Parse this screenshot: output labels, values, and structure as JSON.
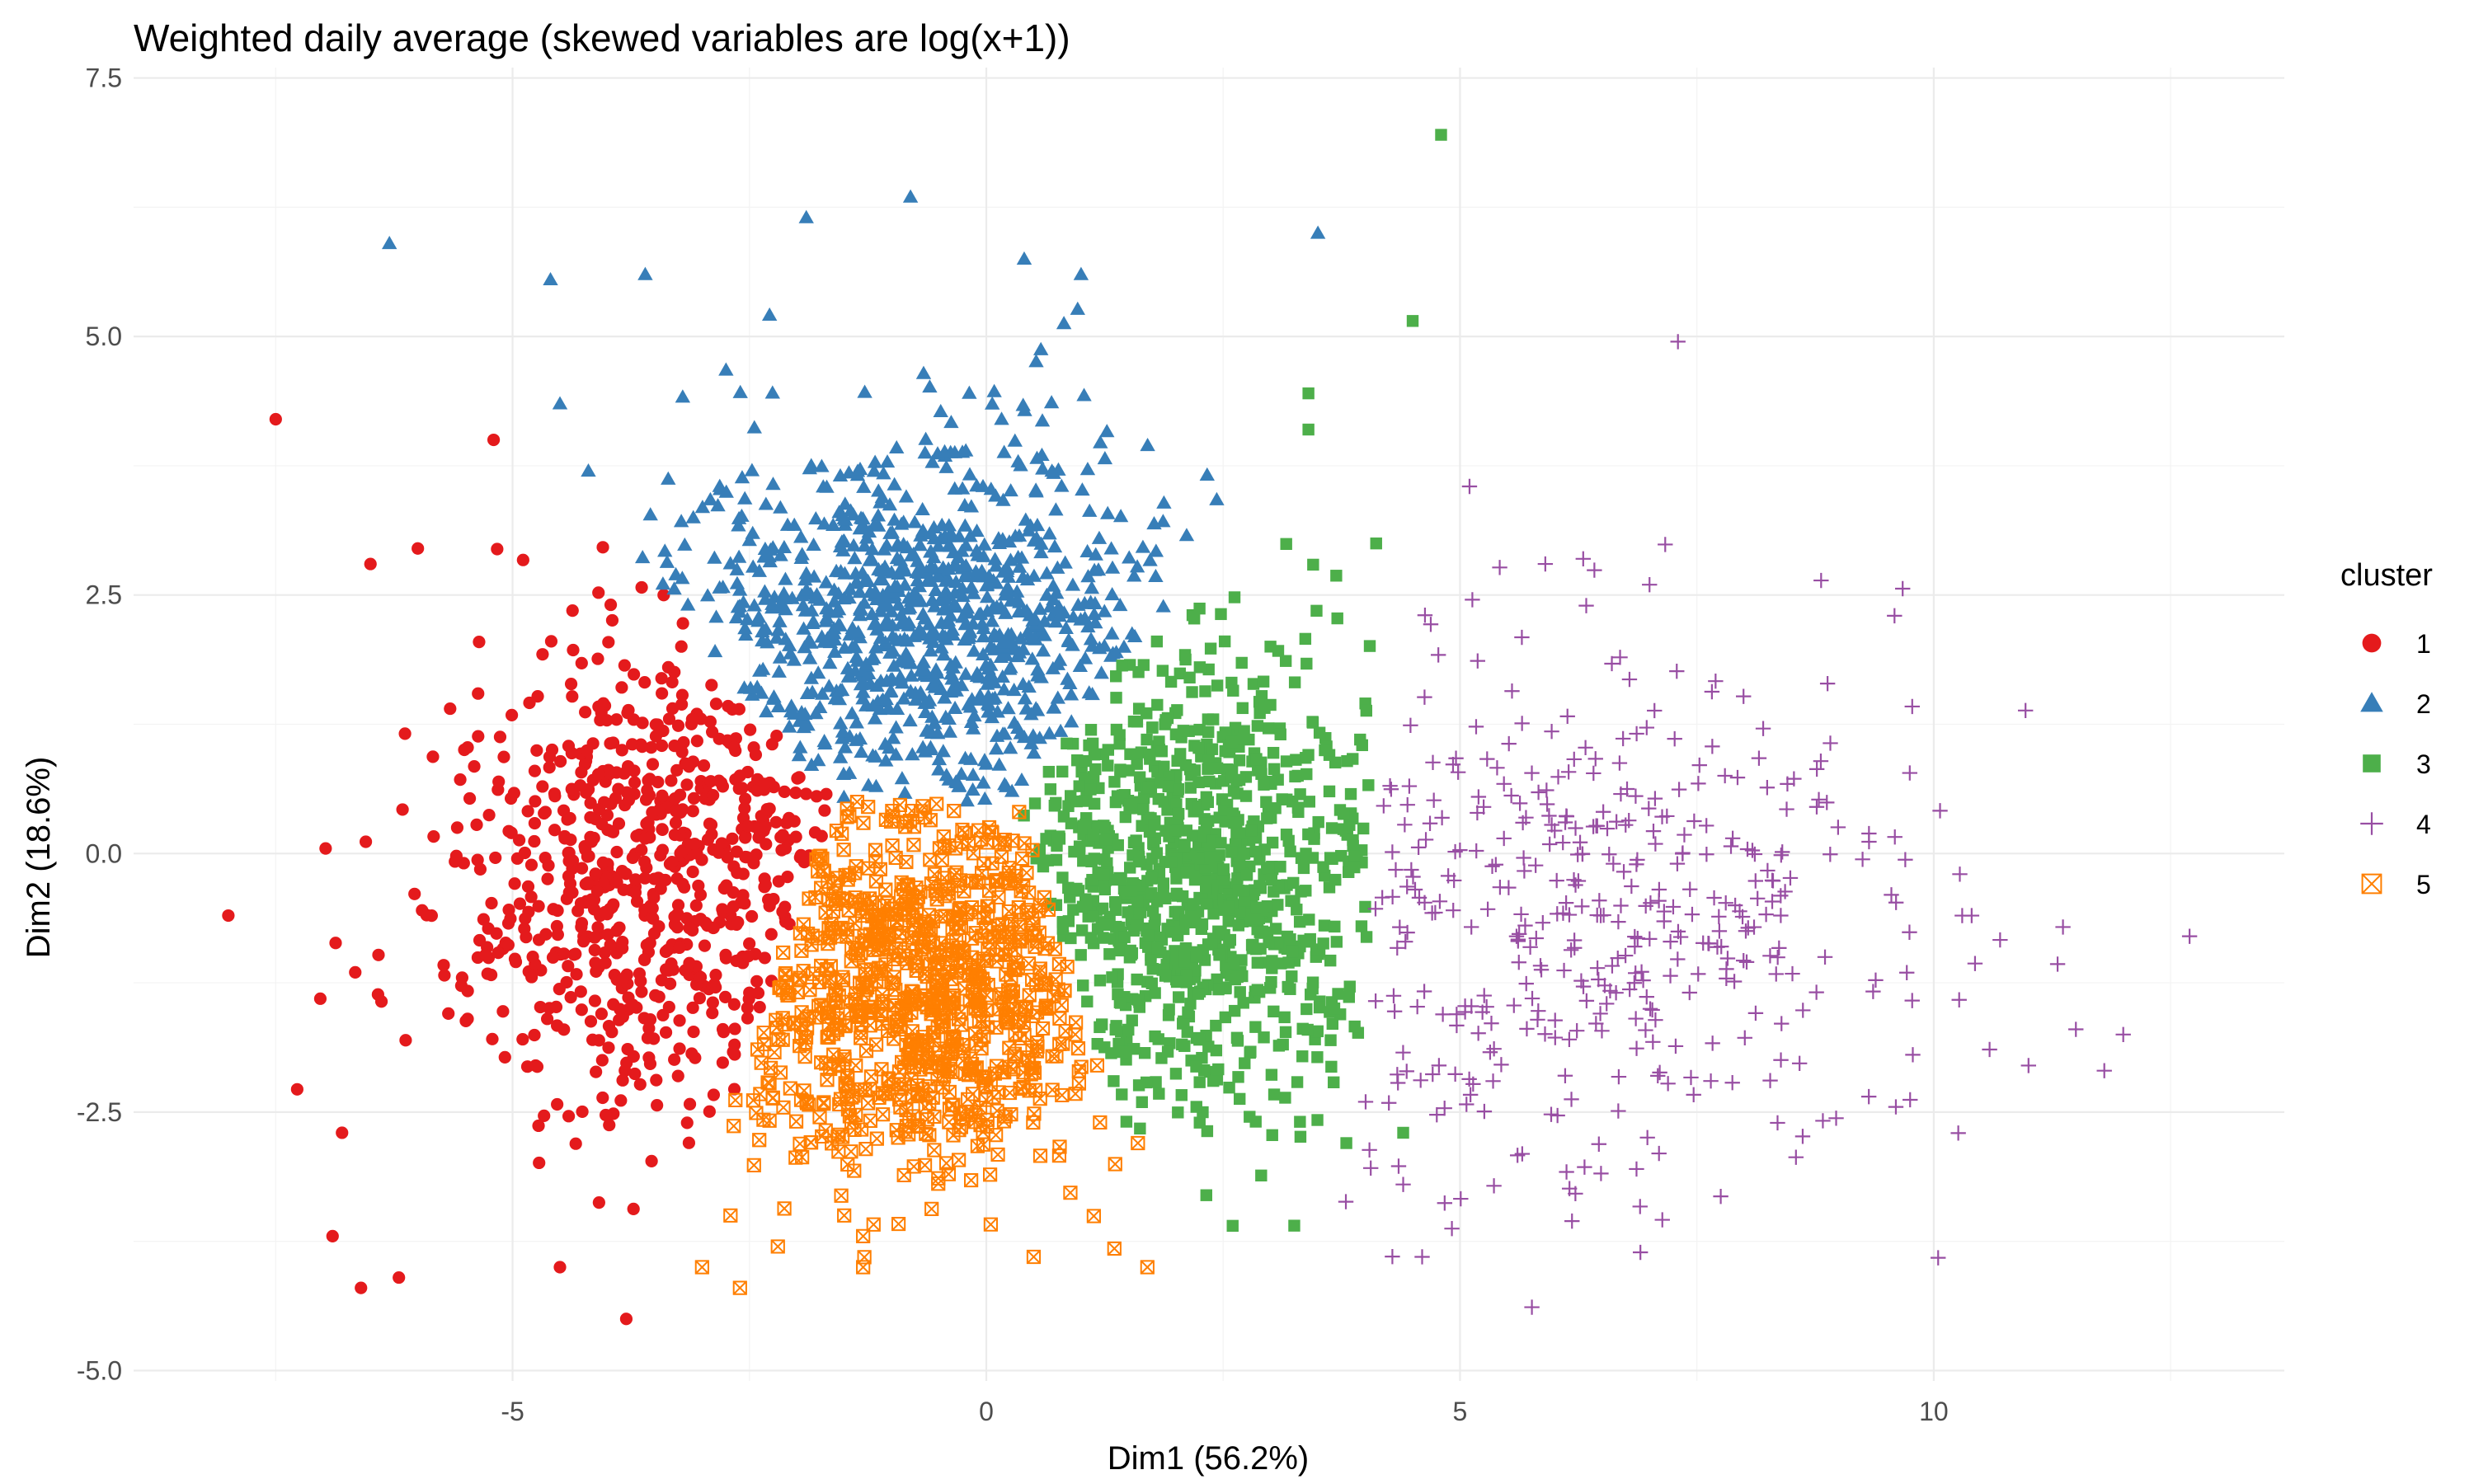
{
  "chart_data": {
    "type": "scatter",
    "title": "Weighted daily average (skewed variables are log(x+1))",
    "xlabel": "Dim1 (56.2%)",
    "ylabel": "Dim2 (18.6%)",
    "xlim": [
      -9,
      13.7
    ],
    "ylim": [
      -5.1,
      7.6
    ],
    "x_ticks": [
      -5,
      0,
      5,
      10
    ],
    "y_ticks": [
      -5.0,
      -2.5,
      0.0,
      2.5,
      5.0,
      7.5
    ],
    "x_tick_labels": [
      "-5",
      "0",
      "5",
      "10"
    ],
    "y_tick_labels": [
      "-5.0",
      "-2.5",
      "0.0",
      "2.5",
      "5.0",
      "7.5"
    ],
    "grid": true,
    "legend": {
      "title": "cluster",
      "position": "right"
    },
    "series": [
      {
        "name": "1",
        "shape": "circle",
        "color": "#E41A1C",
        "center": [
          -3.4,
          -0.2
        ],
        "spread": [
          1.2,
          1.15
        ],
        "count": 720,
        "points": [
          [
            -7.5,
            4.2
          ],
          [
            -5.2,
            4.0
          ],
          [
            -6.5,
            2.8
          ],
          [
            -6.0,
            2.95
          ],
          [
            -8.0,
            -0.6
          ],
          [
            -6.9,
            -3.7
          ],
          [
            -6.6,
            -4.2
          ],
          [
            -6.2,
            -4.1
          ],
          [
            -3.8,
            -4.5
          ],
          [
            -4.5,
            -4.0
          ],
          [
            -6.8,
            -2.7
          ]
        ]
      },
      {
        "name": "2",
        "shape": "triangle",
        "color": "#377EB8",
        "center": [
          -0.7,
          2.2
        ],
        "spread": [
          1.25,
          0.9
        ],
        "count": 900,
        "points": [
          [
            -6.3,
            5.9
          ],
          [
            -0.8,
            6.35
          ],
          [
            -1.9,
            6.15
          ],
          [
            -4.6,
            5.55
          ],
          [
            -3.6,
            5.6
          ],
          [
            3.5,
            6.0
          ],
          [
            1.0,
            5.6
          ],
          [
            0.4,
            5.75
          ],
          [
            -4.5,
            4.35
          ],
          [
            -4.2,
            3.7
          ]
        ]
      },
      {
        "name": "3",
        "shape": "square",
        "color": "#4DAF4A",
        "center": [
          2.2,
          -0.2
        ],
        "spread": [
          0.95,
          1.1
        ],
        "count": 950,
        "points": [
          [
            4.8,
            6.95
          ],
          [
            4.5,
            5.15
          ],
          [
            3.4,
            4.45
          ],
          [
            3.4,
            4.1
          ],
          [
            2.6,
            -3.6
          ],
          [
            4.4,
            -2.7
          ],
          [
            3.8,
            -2.8
          ]
        ]
      },
      {
        "name": "4",
        "shape": "plus",
        "color": "#984EA3",
        "center": [
          6.0,
          -0.6
        ],
        "spread": [
          1.9,
          1.3
        ],
        "count": 420,
        "points": [
          [
            7.3,
            4.95
          ],
          [
            5.1,
            3.55
          ],
          [
            12.7,
            -0.8
          ],
          [
            12.0,
            -1.75
          ],
          [
            11.5,
            -1.7
          ],
          [
            11.8,
            -2.1
          ],
          [
            10.3,
            -0.6
          ],
          [
            10.4,
            -0.6
          ],
          [
            11.0,
            -2.05
          ],
          [
            9.6,
            -2.45
          ],
          [
            7.1,
            -2.9
          ],
          [
            4.6,
            -3.9
          ],
          [
            4.4,
            -3.2
          ],
          [
            7.0,
            2.6
          ],
          [
            6.3,
            2.85
          ],
          [
            5.9,
            2.8
          ]
        ]
      },
      {
        "name": "5",
        "shape": "boxed-x",
        "color": "#FF7F00",
        "center": [
          -0.7,
          -1.2
        ],
        "spread": [
          1.1,
          0.9
        ],
        "count": 900,
        "points": [
          [
            -3.0,
            -4.0
          ],
          [
            -2.6,
            -4.2
          ],
          [
            -2.2,
            -3.8
          ],
          [
            -1.3,
            -3.7
          ],
          [
            -1.3,
            -4.0
          ],
          [
            0.5,
            -3.9
          ],
          [
            1.7,
            -4.0
          ],
          [
            -2.7,
            -3.5
          ],
          [
            -1.5,
            -3.5
          ],
          [
            1.6,
            -2.8
          ],
          [
            1.2,
            -2.6
          ]
        ]
      }
    ]
  }
}
